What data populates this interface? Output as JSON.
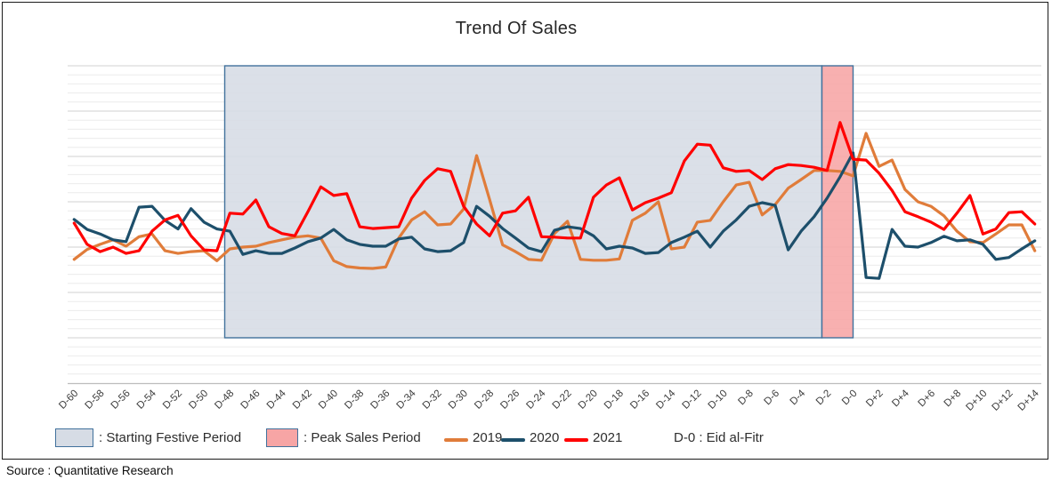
{
  "title": "Trend Of Sales",
  "source": "Source : Quantitative Research",
  "legend": {
    "festive_swatch_color": "#D6DCE5",
    "festive_label": ": Starting Festive Period",
    "peak_swatch_color": "#F7A5A5",
    "peak_label": ": Peak Sales Period",
    "annotation": "D-0 : Eid al-Fitr"
  },
  "chart_data": {
    "type": "line",
    "title": "Trend Of Sales",
    "xlabel": "",
    "ylabel": "",
    "x_start_day": -60,
    "x_end_day": 14,
    "x_tick_step": 2,
    "x_tick_labels": [
      "D-60",
      "D-58",
      "D-56",
      "D-54",
      "D-52",
      "D-50",
      "D-48",
      "D-46",
      "D-44",
      "D-42",
      "D-40",
      "D-38",
      "D-36",
      "D-34",
      "D-32",
      "D-30",
      "D-28",
      "D-26",
      "D-24",
      "D-22",
      "D-20",
      "D-18",
      "D-16",
      "D-14",
      "D-12",
      "D-10",
      "D-8",
      "D-6",
      "D-4",
      "D-2",
      "D-0",
      "D+2",
      "D+4",
      "D+6",
      "D+8",
      "D+10",
      "D+12",
      "D+14"
    ],
    "ylim": [
      0,
      70
    ],
    "y_axis_labels_shown": false,
    "gridlines": {
      "major_step": 10,
      "minor_step": 2,
      "major_color": "#d2d2d2",
      "minor_color": "#ececec"
    },
    "regions": [
      {
        "label": "Starting Festive Period",
        "from_day": -48.4,
        "to_day": -2.4,
        "vmin": 10,
        "vmax": 70,
        "fill": "#D6DCE5",
        "border": "#41719C"
      },
      {
        "label": "Peak Sales Period",
        "from_day": -2.4,
        "to_day": 0,
        "vmin": 10,
        "vmax": 70,
        "fill": "#F7A5A5",
        "border": "#41719C"
      }
    ],
    "annotation": "D-0 : Eid al-Fitr",
    "legend_position": "bottom",
    "series": [
      {
        "name": "2019",
        "color": "#E07C3A",
        "values": [
          27.3,
          29.5,
          30.6,
          31.6,
          30.2,
          32.3,
          32.9,
          29.2,
          28.6,
          29.0,
          29.2,
          27.0,
          29.6,
          30.0,
          30.2,
          31.0,
          31.6,
          32.2,
          32.5,
          32.0,
          27.0,
          25.7,
          25.4,
          25.3,
          25.6,
          32.0,
          36.0,
          37.8,
          34.9,
          35.1,
          38.4,
          50.2,
          40.5,
          30.5,
          29.0,
          27.3,
          27.1,
          33.0,
          35.7,
          27.3,
          27.1,
          27.1,
          27.4,
          35.9,
          37.5,
          40.0,
          29.6,
          30.0,
          35.5,
          35.9,
          40.0,
          43.7,
          44.3,
          37.1,
          39.4,
          43.0,
          44.9,
          46.9,
          46.9,
          46.7,
          45.7,
          55.1,
          47.8,
          49.2,
          42.7,
          40.0,
          39.0,
          36.9,
          33.5,
          31.2,
          31.0,
          32.9,
          34.9,
          34.9,
          29.2
        ]
      },
      {
        "name": "2020",
        "color": "#1D4F6B",
        "values": [
          36.1,
          33.9,
          32.9,
          31.6,
          31.2,
          38.8,
          39.0,
          35.9,
          34.0,
          38.5,
          35.5,
          34.0,
          33.5,
          28.4,
          29.2,
          28.6,
          28.6,
          29.8,
          31.2,
          32.0,
          33.9,
          31.6,
          30.6,
          30.2,
          30.2,
          31.8,
          32.2,
          29.6,
          29.0,
          29.2,
          31.0,
          39.0,
          36.8,
          34.1,
          32.0,
          29.8,
          29.0,
          33.7,
          34.5,
          34.1,
          32.5,
          29.6,
          30.2,
          29.8,
          28.6,
          28.8,
          31.0,
          32.2,
          33.5,
          30.0,
          33.5,
          36.0,
          39.0,
          39.8,
          39.2,
          29.4,
          33.5,
          36.7,
          40.8,
          45.5,
          50.8,
          23.3,
          23.1,
          33.9,
          30.2,
          30.0,
          31.0,
          32.4,
          31.4,
          31.6,
          30.6,
          27.3,
          27.7,
          29.6,
          31.4
        ]
      },
      {
        "name": "2021",
        "color": "#FF0000",
        "values": [
          35.3,
          30.6,
          29.0,
          30.0,
          28.6,
          29.2,
          33.5,
          36.0,
          37.0,
          32.5,
          29.4,
          29.2,
          37.5,
          37.3,
          40.4,
          34.5,
          33.0,
          32.5,
          37.8,
          43.3,
          41.4,
          41.8,
          34.5,
          34.1,
          34.3,
          34.5,
          40.8,
          44.7,
          47.3,
          46.7,
          39.0,
          35.1,
          32.5,
          37.5,
          38.0,
          41.0,
          32.3,
          32.2,
          32.0,
          32.0,
          41.0,
          43.7,
          45.3,
          38.2,
          39.8,
          40.8,
          42.0,
          49.0,
          52.7,
          52.5,
          47.5,
          46.7,
          46.9,
          44.9,
          47.3,
          48.2,
          48.0,
          47.6,
          46.9,
          57.5,
          49.4,
          49.2,
          46.3,
          42.5,
          37.8,
          36.7,
          35.5,
          33.9,
          37.5,
          41.4,
          32.9,
          34.0,
          37.6,
          37.8,
          35.1
        ]
      }
    ]
  }
}
